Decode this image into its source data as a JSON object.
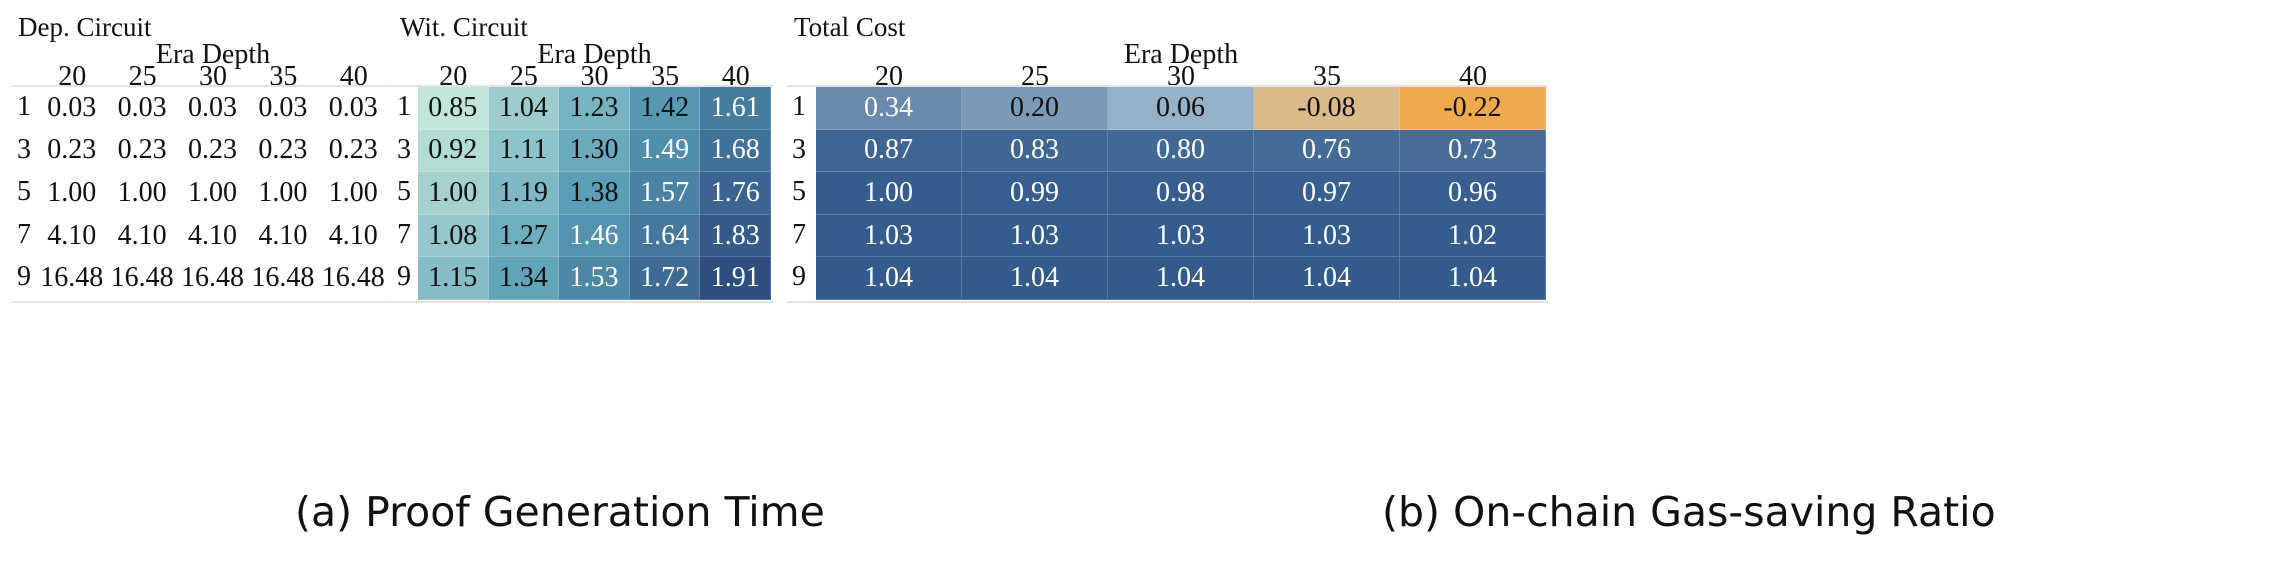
{
  "chart_data": [
    {
      "type": "heatmap",
      "title": "Dep. Circuit",
      "xlabel": "Era Depth",
      "x": [
        "20",
        "25",
        "30",
        "35",
        "40"
      ],
      "y": [
        "1",
        "3",
        "5",
        "7",
        "9"
      ],
      "values": [
        [
          "0.03",
          "0.03",
          "0.03",
          "0.03",
          "0.03"
        ],
        [
          "0.23",
          "0.23",
          "0.23",
          "0.23",
          "0.23"
        ],
        [
          "1.00",
          "1.00",
          "1.00",
          "1.00",
          "1.00"
        ],
        [
          "4.10",
          "4.10",
          "4.10",
          "4.10",
          "4.10"
        ],
        [
          "16.48",
          "16.48",
          "16.48",
          "16.48",
          "16.48"
        ]
      ],
      "colormap": "blues-teal",
      "color_range": [
        0,
        16.48
      ]
    },
    {
      "type": "heatmap",
      "title": "Wit. Circuit",
      "xlabel": "Era Depth",
      "x": [
        "20",
        "25",
        "30",
        "35",
        "40"
      ],
      "y": [
        "1",
        "3",
        "5",
        "7",
        "9"
      ],
      "values": [
        [
          "0.85",
          "1.04",
          "1.23",
          "1.42",
          "1.61"
        ],
        [
          "0.92",
          "1.11",
          "1.30",
          "1.49",
          "1.68"
        ],
        [
          "1.00",
          "1.19",
          "1.38",
          "1.57",
          "1.76"
        ],
        [
          "1.08",
          "1.27",
          "1.46",
          "1.64",
          "1.83"
        ],
        [
          "1.15",
          "1.34",
          "1.53",
          "1.72",
          "1.91"
        ]
      ],
      "colormap": "blues-teal",
      "color_range": [
        0.85,
        1.91
      ]
    },
    {
      "type": "heatmap",
      "title": "Total Cost",
      "xlabel": "Era Depth",
      "x": [
        "20",
        "25",
        "30",
        "35",
        "40"
      ],
      "y": [
        "1",
        "3",
        "5",
        "7",
        "9"
      ],
      "values": [
        [
          "0.34",
          "0.20",
          "0.06",
          "-0.08",
          "-0.22"
        ],
        [
          "0.87",
          "0.83",
          "0.80",
          "0.76",
          "0.73"
        ],
        [
          "1.00",
          "0.99",
          "0.98",
          "0.97",
          "0.96"
        ],
        [
          "1.03",
          "1.03",
          "1.03",
          "1.03",
          "1.02"
        ],
        [
          "1.04",
          "1.04",
          "1.04",
          "1.04",
          "1.04"
        ]
      ],
      "colormap": "diverging-orange-blue",
      "color_range": [
        -0.22,
        1.04
      ]
    }
  ],
  "captions": {
    "a": "(a) Proof Generation Time",
    "b": "(b) On-chain Gas-saving Ratio"
  },
  "colors": {
    "seq_low": "#c1e5da",
    "seq_mid": "#5a9fb7",
    "seq_high": "#2f4e80",
    "div_neg": "#f0a94f",
    "div_zero": "#bcd3df",
    "div_pos": "#335b8c"
  }
}
